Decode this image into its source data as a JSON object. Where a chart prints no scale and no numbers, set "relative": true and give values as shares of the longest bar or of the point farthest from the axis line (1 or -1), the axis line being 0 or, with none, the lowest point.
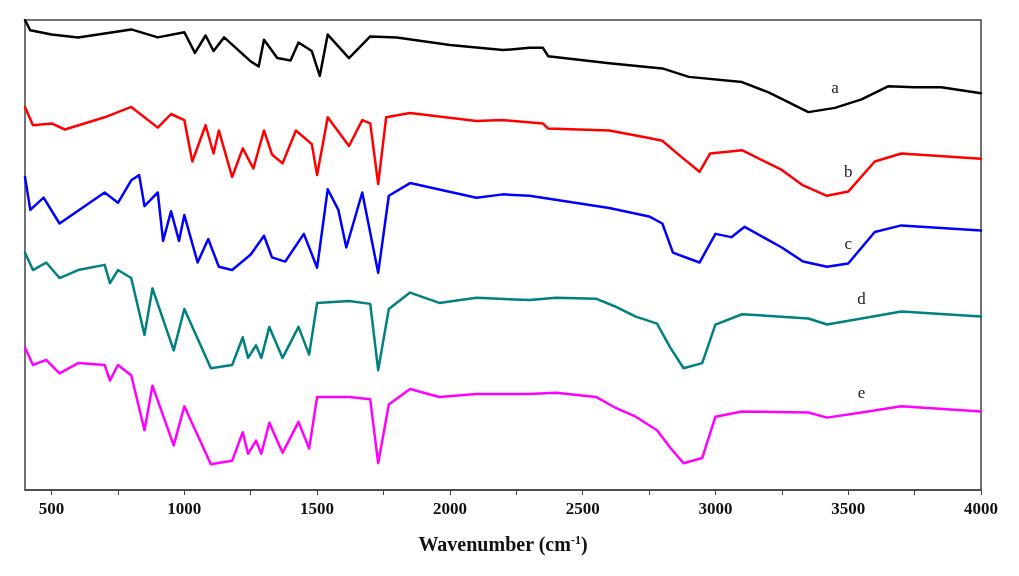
{
  "chart_data": {
    "type": "line",
    "relative": true,
    "xlabel": "Wavenumber (cm$^{-1}$)",
    "xlim": [
      400,
      4000
    ],
    "xticks": [
      500,
      {
        "value": 750,
        "label": null
      },
      1000,
      {
        "value": 1250,
        "label": null
      },
      1500,
      {
        "value": 1750,
        "label": null
      },
      2000,
      {
        "value": 2250,
        "label": null
      },
      2500,
      {
        "value": 2750,
        "label": null
      },
      3000,
      {
        "value": 3250,
        "label": null
      },
      3500,
      {
        "value": 3750,
        "label": null
      },
      4000
    ],
    "marker": "none",
    "line_style": "solid",
    "series": [
      {
        "name": "a",
        "color": "#000000",
        "x": [
          400,
          420,
          500,
          600,
          800,
          900,
          1000,
          1040,
          1080,
          1110,
          1150,
          1250,
          1280,
          1300,
          1350,
          1400,
          1430,
          1480,
          1510,
          1540,
          1620,
          1700,
          1800,
          2000,
          2200,
          2300,
          2350,
          2370,
          2600,
          2800,
          2900,
          3100,
          3200,
          3350,
          3450,
          3550,
          3650,
          3750,
          3850,
          4000
        ],
        "values": [
          1.0,
          0.978,
          0.969,
          0.963,
          0.98,
          0.963,
          0.974,
          0.93,
          0.967,
          0.934,
          0.963,
          0.912,
          0.901,
          0.958,
          0.919,
          0.914,
          0.952,
          0.934,
          0.881,
          0.969,
          0.919,
          0.965,
          0.963,
          0.947,
          0.936,
          0.941,
          0.941,
          0.923,
          0.908,
          0.897,
          0.879,
          0.868,
          0.846,
          0.804,
          0.813,
          0.831,
          0.859,
          0.857,
          0.857,
          0.844
        ]
      },
      {
        "name": "b",
        "color": "#ff0000",
        "x": [
          400,
          430,
          500,
          550,
          700,
          800,
          900,
          950,
          1000,
          1030,
          1080,
          1110,
          1130,
          1180,
          1220,
          1260,
          1300,
          1330,
          1370,
          1420,
          1480,
          1500,
          1540,
          1620,
          1670,
          1700,
          1730,
          1760,
          1850,
          2100,
          2200,
          2350,
          2370,
          2600,
          2750,
          2800,
          2860,
          2940,
          2980,
          3100,
          3250,
          3330,
          3420,
          3500,
          3600,
          3700,
          4000
        ],
        "values": [
          0.815,
          0.776,
          0.78,
          0.767,
          0.793,
          0.815,
          0.771,
          0.8,
          0.787,
          0.699,
          0.776,
          0.716,
          0.765,
          0.666,
          0.727,
          0.684,
          0.765,
          0.714,
          0.695,
          0.765,
          0.736,
          0.67,
          0.793,
          0.732,
          0.787,
          0.78,
          0.651,
          0.793,
          0.802,
          0.785,
          0.787,
          0.78,
          0.769,
          0.765,
          0.749,
          0.743,
          0.714,
          0.677,
          0.716,
          0.723,
          0.681,
          0.648,
          0.626,
          0.635,
          0.699,
          0.716,
          0.705
        ]
      },
      {
        "name": "c",
        "color": "#0000ff",
        "x": [
          400,
          420,
          470,
          530,
          700,
          750,
          800,
          830,
          850,
          900,
          920,
          950,
          980,
          1000,
          1050,
          1090,
          1130,
          1180,
          1250,
          1300,
          1330,
          1380,
          1450,
          1500,
          1540,
          1580,
          1610,
          1670,
          1730,
          1770,
          1850,
          2100,
          2200,
          2300,
          2600,
          2750,
          2800,
          2840,
          2940,
          3000,
          3060,
          3110,
          3250,
          3330,
          3420,
          3500,
          3600,
          3700,
          4000
        ],
        "values": [
          0.666,
          0.596,
          0.622,
          0.567,
          0.633,
          0.611,
          0.659,
          0.67,
          0.604,
          0.633,
          0.53,
          0.593,
          0.53,
          0.585,
          0.484,
          0.534,
          0.475,
          0.468,
          0.501,
          0.541,
          0.495,
          0.486,
          0.545,
          0.473,
          0.64,
          0.596,
          0.516,
          0.633,
          0.462,
          0.626,
          0.653,
          0.622,
          0.629,
          0.626,
          0.6,
          0.582,
          0.567,
          0.505,
          0.484,
          0.545,
          0.538,
          0.56,
          0.516,
          0.486,
          0.475,
          0.482,
          0.549,
          0.563,
          0.552
        ]
      },
      {
        "name": "d",
        "color": "#008080",
        "x": [
          400,
          430,
          480,
          530,
          600,
          700,
          720,
          750,
          800,
          850,
          880,
          960,
          1000,
          1100,
          1180,
          1220,
          1240,
          1270,
          1290,
          1320,
          1370,
          1430,
          1470,
          1500,
          1620,
          1700,
          1730,
          1770,
          1850,
          1960,
          2100,
          2300,
          2400,
          2550,
          2620,
          2700,
          2780,
          2830,
          2880,
          2950,
          3000,
          3100,
          3350,
          3420,
          3550,
          3700,
          4000
        ],
        "values": [
          0.505,
          0.468,
          0.484,
          0.451,
          0.468,
          0.479,
          0.44,
          0.468,
          0.451,
          0.33,
          0.429,
          0.297,
          0.385,
          0.259,
          0.266,
          0.325,
          0.281,
          0.308,
          0.281,
          0.347,
          0.281,
          0.347,
          0.288,
          0.398,
          0.402,
          0.396,
          0.255,
          0.385,
          0.42,
          0.398,
          0.409,
          0.404,
          0.409,
          0.407,
          0.391,
          0.369,
          0.354,
          0.303,
          0.259,
          0.27,
          0.352,
          0.374,
          0.365,
          0.352,
          0.365,
          0.38,
          0.369
        ]
      },
      {
        "name": "e",
        "color": "#ff00ff",
        "x": [
          400,
          430,
          480,
          530,
          600,
          700,
          720,
          750,
          800,
          850,
          880,
          960,
          1000,
          1100,
          1180,
          1220,
          1240,
          1270,
          1290,
          1320,
          1370,
          1430,
          1470,
          1500,
          1620,
          1700,
          1730,
          1770,
          1850,
          1960,
          2100,
          2300,
          2400,
          2550,
          2620,
          2700,
          2780,
          2830,
          2880,
          2950,
          3000,
          3100,
          3350,
          3420,
          3550,
          3700,
          4000
        ],
        "values": [
          0.303,
          0.266,
          0.277,
          0.248,
          0.27,
          0.266,
          0.233,
          0.266,
          0.244,
          0.127,
          0.222,
          0.095,
          0.178,
          0.055,
          0.062,
          0.123,
          0.077,
          0.105,
          0.077,
          0.143,
          0.079,
          0.145,
          0.088,
          0.198,
          0.198,
          0.193,
          0.057,
          0.182,
          0.215,
          0.198,
          0.204,
          0.204,
          0.207,
          0.198,
          0.176,
          0.156,
          0.127,
          0.09,
          0.057,
          0.068,
          0.156,
          0.167,
          0.165,
          0.154,
          0.165,
          0.178,
          0.167
        ]
      }
    ]
  }
}
